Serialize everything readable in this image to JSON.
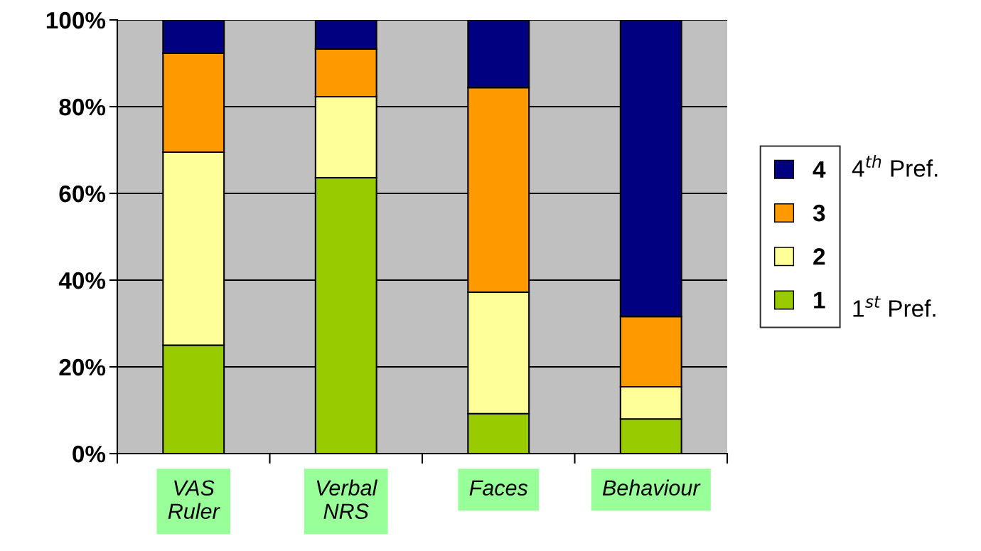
{
  "chart_data": {
    "type": "bar",
    "stacked": true,
    "categories": [
      "VAS\nRuler",
      "Verbal\nNRS",
      "Faces",
      "Behaviour"
    ],
    "series": [
      {
        "name": "1",
        "color": "#99cc00",
        "values": [
          25.0,
          63.6,
          9.2,
          8.0
        ]
      },
      {
        "name": "2",
        "color": "#ffff99",
        "values": [
          44.5,
          18.7,
          28.0,
          7.4
        ]
      },
      {
        "name": "3",
        "color": "#ff9900",
        "values": [
          22.8,
          11.0,
          47.2,
          16.2
        ]
      },
      {
        "name": "4",
        "color": "#000080",
        "values": [
          7.7,
          6.7,
          15.6,
          68.4
        ]
      }
    ],
    "ylim": [
      0,
      100
    ],
    "yticks": [
      {
        "value": 0,
        "label": "0%"
      },
      {
        "value": 20,
        "label": "20%"
      },
      {
        "value": 40,
        "label": "40%"
      },
      {
        "value": 60,
        "label": "60%"
      },
      {
        "value": 80,
        "label": "80%"
      },
      {
        "value": 100,
        "label": "100%"
      }
    ],
    "grid": "y",
    "legend": "right",
    "annotations": [
      "4$^{th}$ Pref.",
      "1$^{st}$ Pref."
    ]
  }
}
